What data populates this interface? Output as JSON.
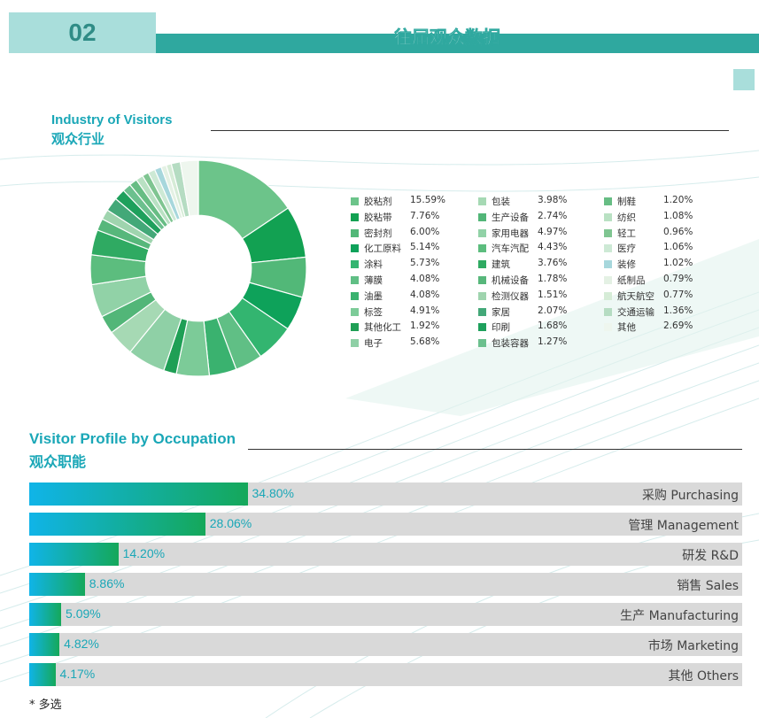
{
  "header": {
    "number": "02",
    "title": "往届观众数据"
  },
  "industry": {
    "title_en": "Industry of Visitors",
    "title_zh": "观众行业"
  },
  "occupation": {
    "title_en": "Visitor Profile by Occupation",
    "title_zh": "观众职能"
  },
  "footnote": "* 多选",
  "chart_data": [
    {
      "type": "pie",
      "categories": [
        "胶粘剂",
        "胶粘带",
        "密封剂",
        "化工原料",
        "涂料",
        "薄膜",
        "油墨",
        "标签",
        "其他化工",
        "电子",
        "包装",
        "生产设备",
        "家用电器",
        "汽车汽配",
        "建筑",
        "机械设备",
        "检测仪器",
        "家居",
        "印刷",
        "包装容器",
        "制鞋",
        "纺织",
        "轻工",
        "医疗",
        "装修",
        "纸制品",
        "航天航空",
        "交通运输",
        "其他"
      ],
      "values": [
        15.59,
        7.76,
        6.0,
        5.14,
        5.73,
        4.08,
        4.08,
        4.91,
        1.92,
        5.68,
        3.98,
        2.74,
        4.97,
        4.43,
        3.76,
        1.78,
        1.51,
        2.07,
        1.68,
        1.27,
        1.2,
        1.08,
        0.96,
        1.06,
        1.02,
        0.79,
        0.77,
        1.36,
        2.69
      ],
      "labels": [
        "15.59%",
        "7.76%",
        "6.00%",
        "5.14%",
        "5.73%",
        "4.08%",
        "4.08%",
        "4.91%",
        "1.92%",
        "5.68%",
        "3.98%",
        "2.74%",
        "4.97%",
        "4.43%",
        "3.76%",
        "1.78%",
        "1.51%",
        "2.07%",
        "1.68%",
        "1.27%",
        "1.20%",
        "1.08%",
        "0.96%",
        "1.06%",
        "1.02%",
        "0.79%",
        "0.77%",
        "1.36%",
        "2.69%"
      ],
      "colors": [
        "#6cc48a",
        "#12a152",
        "#52b878",
        "#0ea25a",
        "#33b570",
        "#60bf85",
        "#3ab26f",
        "#7ccb98",
        "#1f9f55",
        "#8fd0a6",
        "#a6d9b4",
        "#52b678",
        "#91d2a7",
        "#5cbd7e",
        "#2faa62",
        "#57b77b",
        "#9fd4ae",
        "#43a878",
        "#1ea05c",
        "#6cc08e",
        "#67bd84",
        "#b9e1c3",
        "#7fc591",
        "#cde9d5",
        "#a7d7dc",
        "#e4f1e4",
        "#d6ecd7",
        "#b5dcc2",
        "#eef6ee"
      ],
      "legend_columns": 3,
      "inner_radius_ratio": 0.49
    },
    {
      "type": "bar",
      "orientation": "horizontal",
      "categories": [
        "采购 Purchasing",
        "管理 Management",
        "研发 R&D",
        "销售 Sales",
        "生产 Manufacturing",
        "市场 Marketing",
        "其他 Others"
      ],
      "values": [
        34.8,
        28.06,
        14.2,
        8.86,
        5.09,
        4.82,
        4.17
      ],
      "labels": [
        "34.80%",
        "28.06%",
        "14.20%",
        "8.86%",
        "5.09%",
        "4.82%",
        "4.17%"
      ],
      "xlim": [
        0,
        100
      ]
    }
  ]
}
